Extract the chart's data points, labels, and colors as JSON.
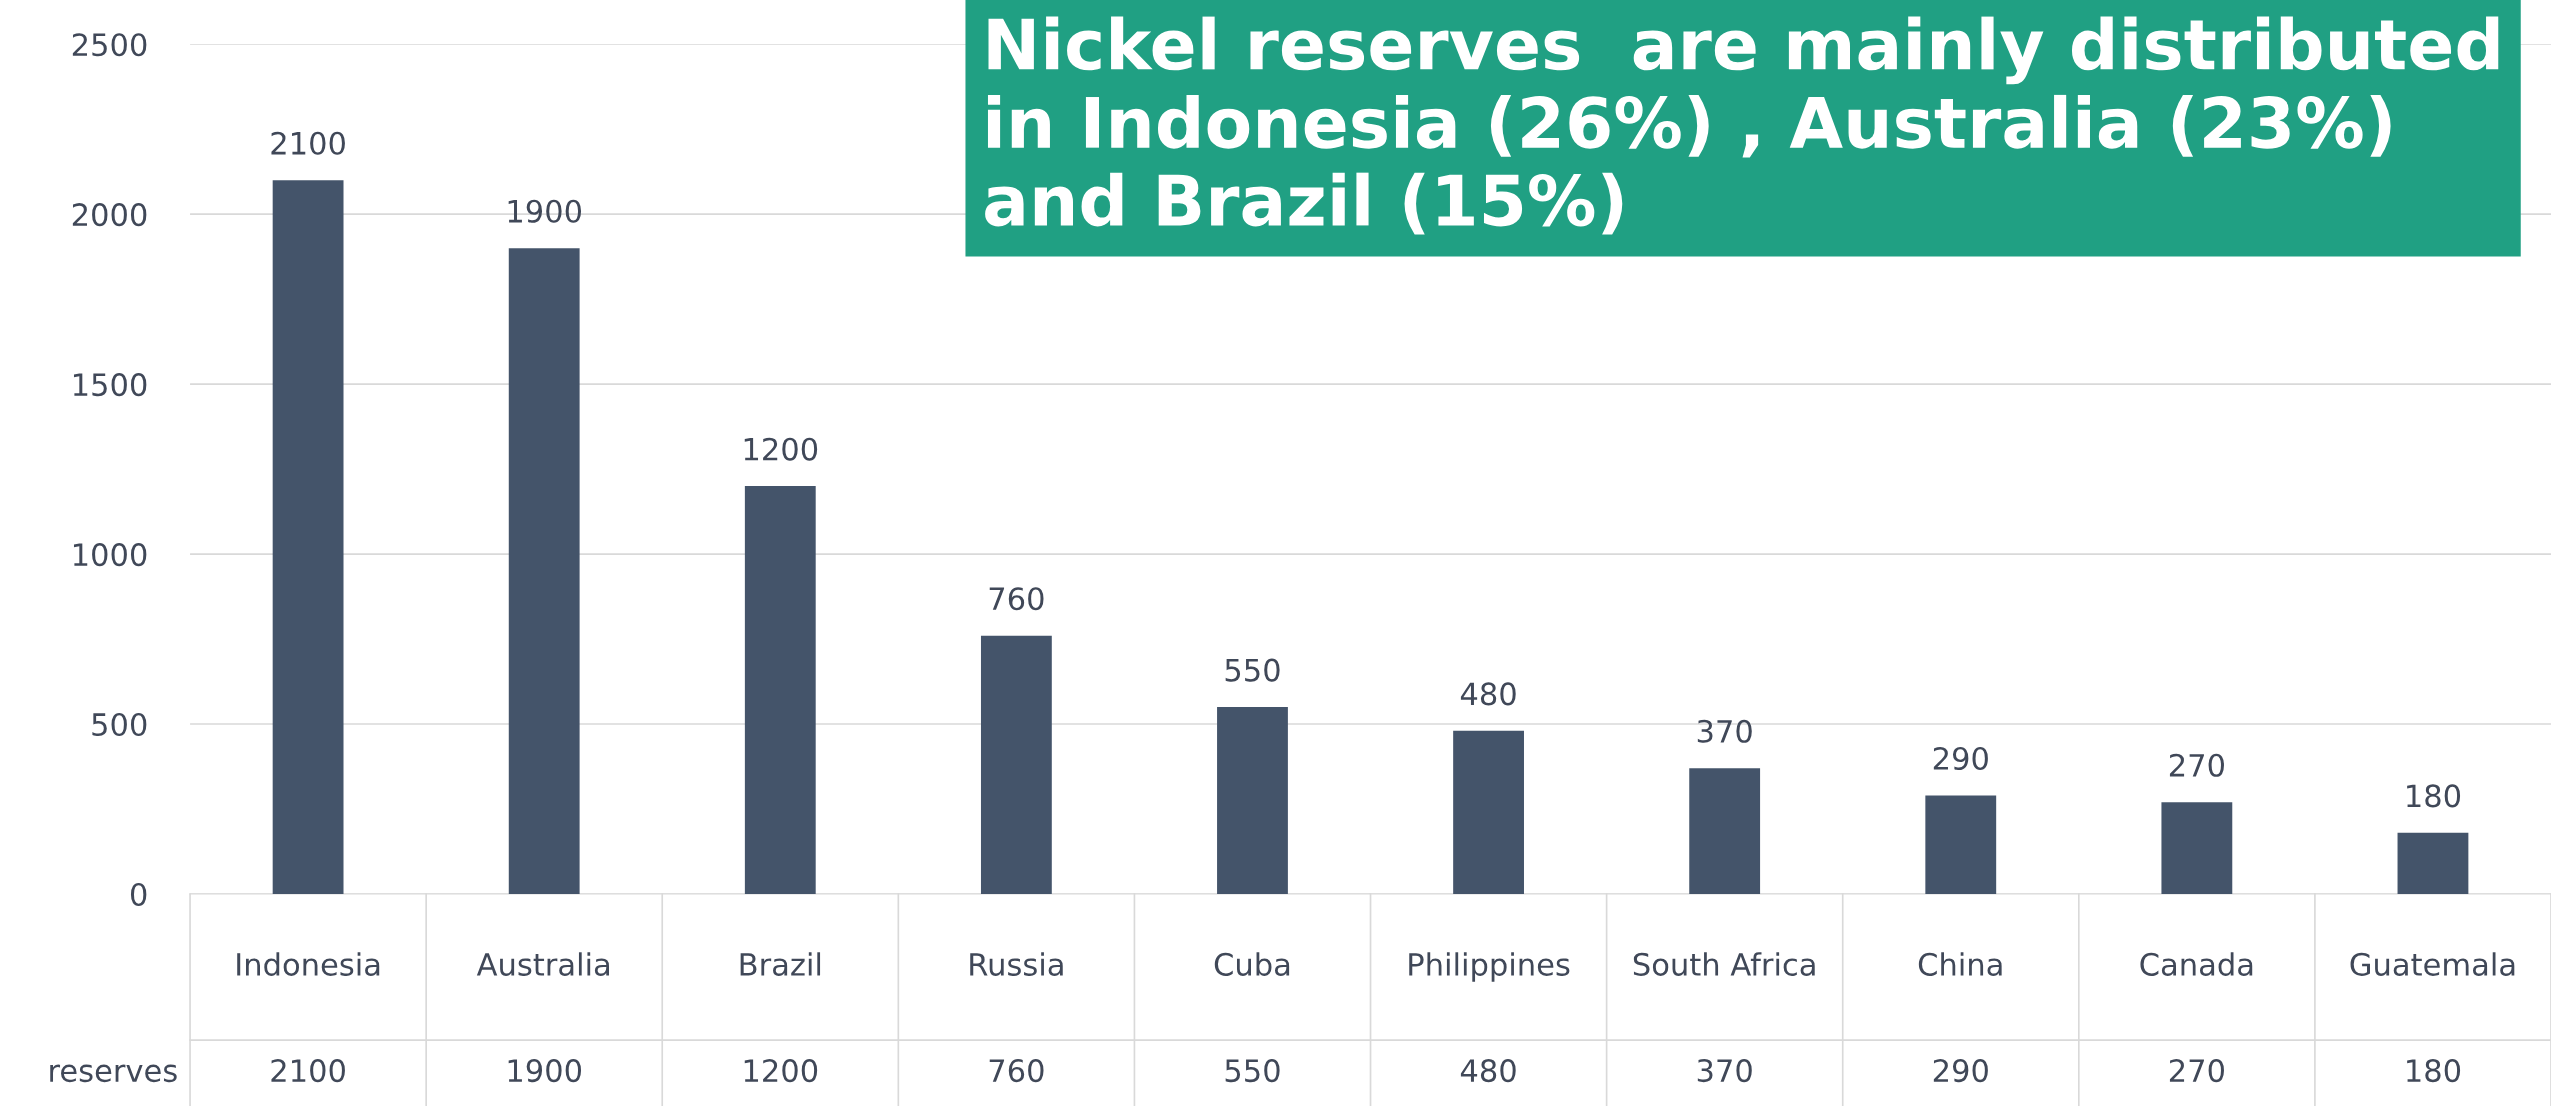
{
  "chart_data": {
    "type": "bar",
    "title": "Nickel reserves  are mainly distributed in Indonesia (26%) , Australia (23%) and Brazil (15%)",
    "categories": [
      "Indonesia",
      "Australia",
      "Brazil",
      "Russia",
      "Cuba",
      "Philippines",
      "South Africa",
      "China",
      "Canada",
      "Guatemala"
    ],
    "series": [
      {
        "name": "reserves",
        "color": "#44546a",
        "values": [
          2100,
          1900,
          1200,
          760,
          550,
          480,
          370,
          290,
          270,
          180
        ],
        "value_labels": [
          "2100",
          "1900",
          "1200",
          "760",
          "550",
          "480",
          "370",
          "290",
          "270",
          "180"
        ]
      }
    ],
    "annotations": [
      "2100",
      "1900",
      "1200",
      "760",
      "550",
      "480",
      "370",
      "290",
      "270",
      "180"
    ],
    "ylim": [
      0,
      2500
    ],
    "yticks": [
      0,
      500,
      1000,
      1500,
      2000,
      2500
    ],
    "grid": "y",
    "data_labels": true
  }
}
